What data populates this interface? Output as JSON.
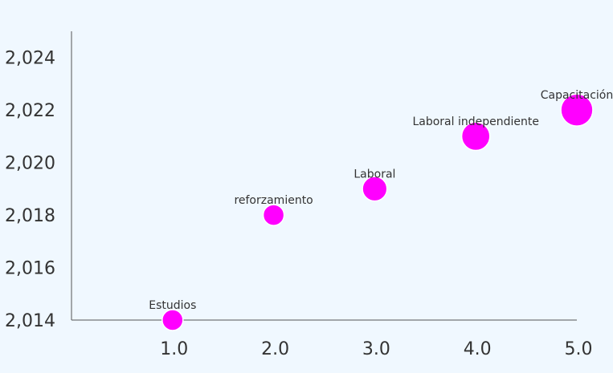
{
  "chart_data": {
    "type": "scatter",
    "x_ticks": [
      "1.0",
      "2.0",
      "3.0",
      "4.0",
      "5.0"
    ],
    "y_ticks": [
      "2,014",
      "2,016",
      "2,018",
      "2,020",
      "2,022",
      "2,024"
    ],
    "xlim": [
      0,
      5
    ],
    "ylim": [
      2014,
      2025
    ],
    "grid": false,
    "marker_color": "#ff00ff",
    "marker_stroke": "#ffffff",
    "points": [
      {
        "x": 1,
        "y": 2014,
        "label": "Estudios",
        "size": 1
      },
      {
        "x": 2,
        "y": 2018,
        "label": "reforzamiento",
        "size": 1
      },
      {
        "x": 3,
        "y": 2019,
        "label": "Laboral",
        "size": 2
      },
      {
        "x": 4,
        "y": 2021,
        "label": "Laboral independiente",
        "size": 3
      },
      {
        "x": 5,
        "y": 2022,
        "label": "Capacitación",
        "size": 4
      }
    ]
  }
}
